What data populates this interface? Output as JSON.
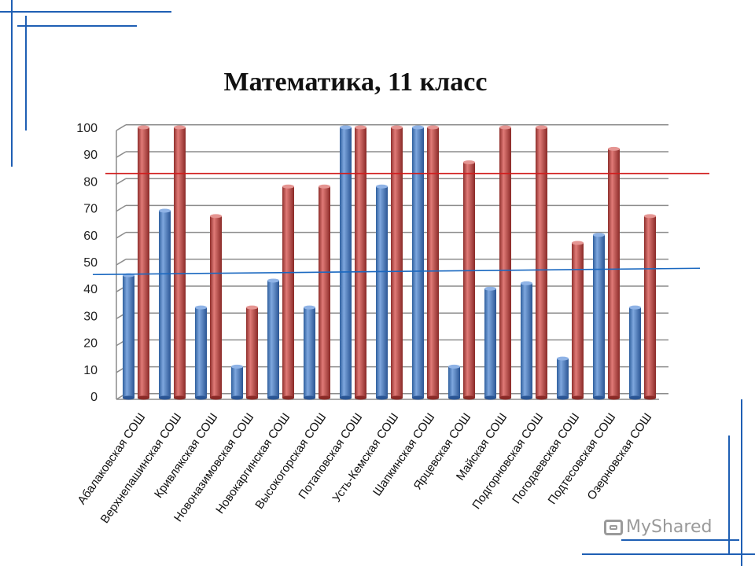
{
  "slide": {
    "watermark_text": "MyShared"
  },
  "colors": {
    "series_blue": "#4a7fc6",
    "series_red": "#c0504d",
    "grid": "#8c8c8c",
    "frame": "#1f5fb4",
    "ref_line_red": "#d11d1d",
    "ref_line_blue": "#1a68c0"
  },
  "chart_data": {
    "type": "bar",
    "title": "Математика, 11 класс",
    "xlabel": "",
    "ylabel": "",
    "ylim": [
      0,
      100
    ],
    "yticks": [
      "0",
      "10",
      "20",
      "30",
      "40",
      "50",
      "60",
      "70",
      "80",
      "90",
      "100"
    ],
    "grid": true,
    "legend": "none",
    "style": "3d-cylinder",
    "categories": [
      "Абалаковская СОШ",
      "Верхнепашинская СОШ",
      "Кривлякская СОШ",
      "Новоназимовская СОШ",
      "Новокаргинская СОШ",
      "Высокогорская СОШ",
      "Потаповская СОШ",
      "Усть-Кемская СОШ",
      "Шапкинская СОШ",
      "Ярцевская СОШ",
      "Майская СОШ",
      "Подгорновская СОШ",
      "Погодаевская СОШ",
      "Подтесовская СОШ",
      "Озерновская СОШ"
    ],
    "series": [
      {
        "values": [
          45,
          69,
          33,
          11,
          43,
          33,
          100,
          78,
          100,
          11,
          40,
          42,
          14,
          60,
          33
        ]
      },
      {
        "values": [
          100,
          100,
          67,
          33,
          78,
          78,
          100,
          100,
          100,
          87,
          100,
          100,
          57,
          92,
          67
        ]
      }
    ],
    "reference_lines": [
      {
        "value": 84,
        "color": "red"
      },
      {
        "value": 47,
        "color": "blue"
      }
    ]
  }
}
